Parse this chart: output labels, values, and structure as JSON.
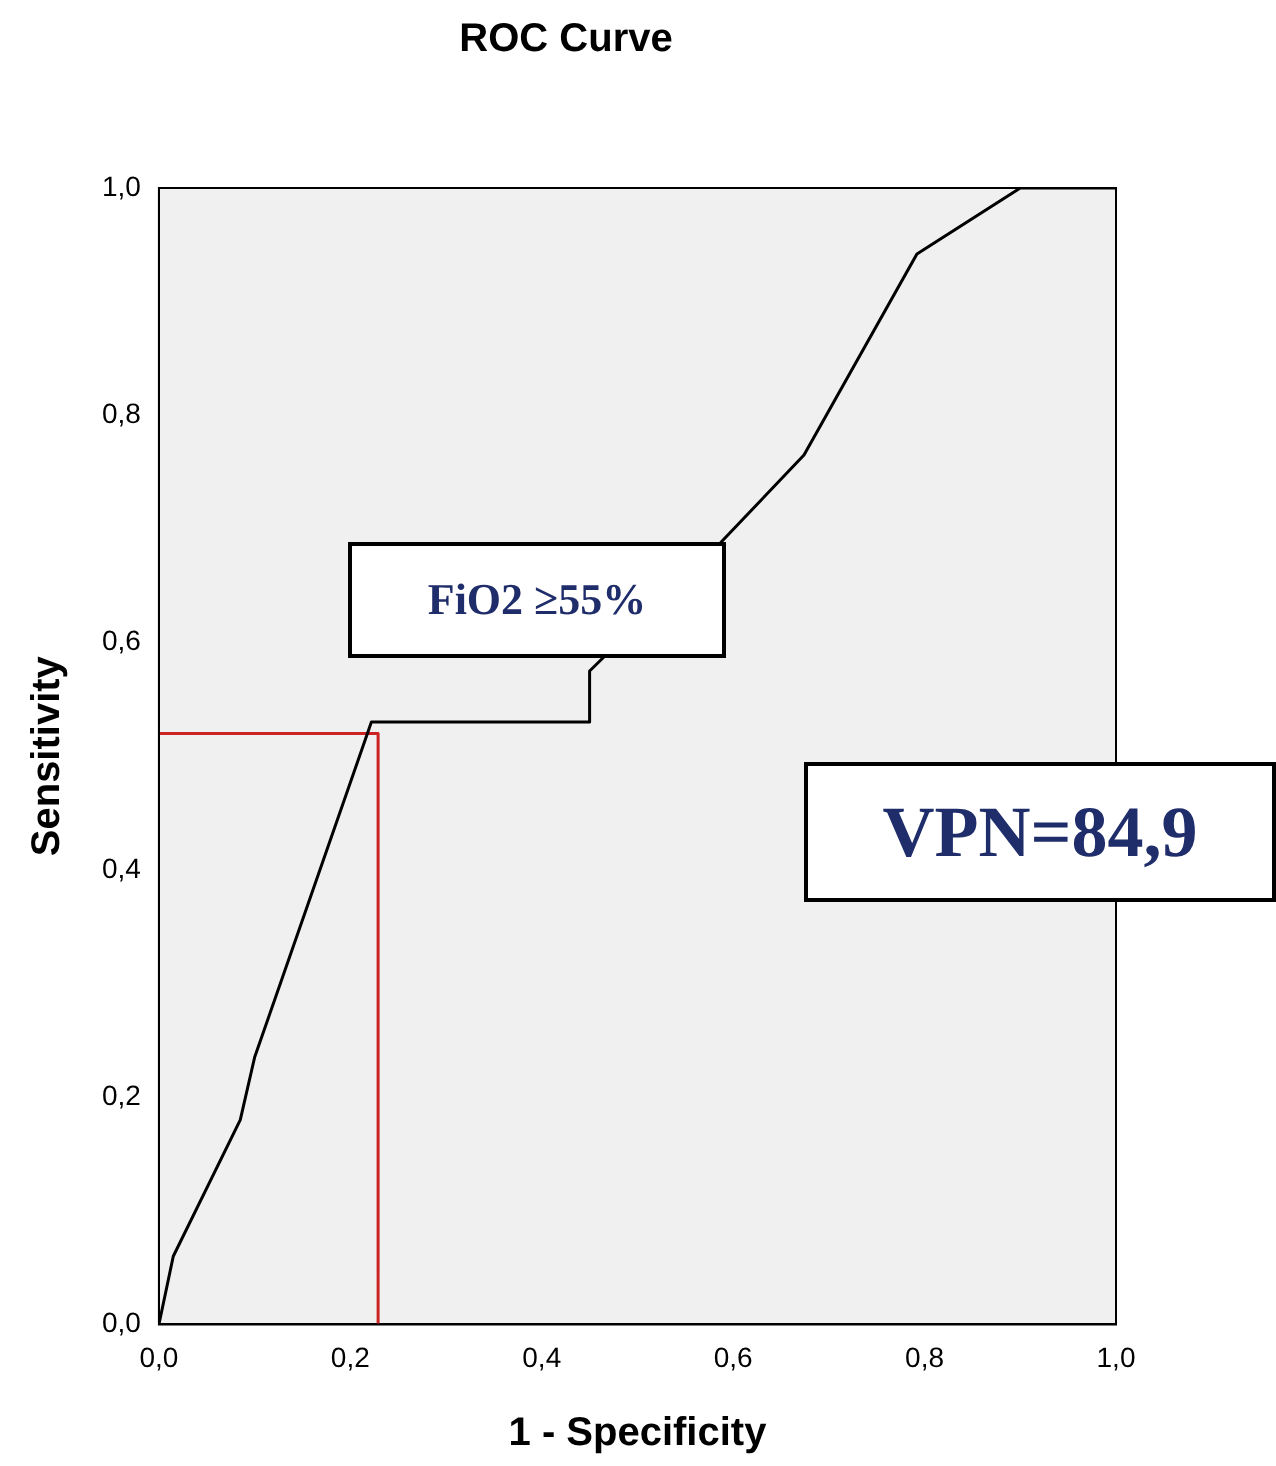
{
  "chart_data": {
    "type": "line",
    "title": "ROC Curve",
    "xlabel": "1 - Specificity",
    "ylabel": "Sensitivity",
    "annotations": [
      "FiO2 ≥55%",
      "VPN=84,9"
    ],
    "series": [
      {
        "color": "#000000",
        "x": [
          0,
          0.015,
          0.085,
          0.1,
          0.222,
          0.45,
          0.45,
          0.587,
          0.674,
          0.792,
          0.9,
          1
        ],
        "values": [
          0,
          0.06,
          0.18,
          0.235,
          0.53,
          0.53,
          0.575,
          0.688,
          0.765,
          0.942,
          1,
          1
        ]
      },
      {
        "color": "#cc2222",
        "x": [
          0,
          0.229,
          0.229
        ],
        "values": [
          0.52,
          0.52,
          0
        ]
      }
    ],
    "xlim": [
      0,
      1
    ],
    "ylim": [
      0,
      1
    ],
    "xticks": [
      {
        "value": 0,
        "label": "0,0"
      },
      {
        "value": 0.2,
        "label": "0,2"
      },
      {
        "value": 0.4,
        "label": "0,4"
      },
      {
        "value": 0.6,
        "label": "0,6"
      },
      {
        "value": 0.8,
        "label": "0,8"
      },
      {
        "value": 1,
        "label": "1,0"
      }
    ],
    "yticks": [
      {
        "value": 0,
        "label": "0,0"
      },
      {
        "value": 0.2,
        "label": "0,2"
      },
      {
        "value": 0.4,
        "label": "0,4"
      },
      {
        "value": 0.6,
        "label": "0,6"
      },
      {
        "value": 0.8,
        "label": "0,8"
      },
      {
        "value": 1,
        "label": "1,0"
      }
    ],
    "grid": false,
    "legend": false,
    "marker": "none",
    "line_style": "solid"
  }
}
